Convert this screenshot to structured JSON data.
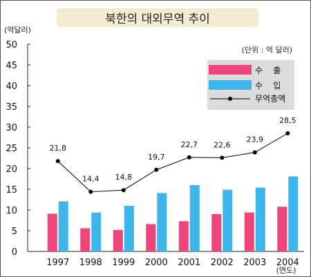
{
  "colors": {
    "export": "#f0457a",
    "import": "#3db6ec",
    "total": "#000000",
    "title_bg": "#f4ecd2",
    "legend_bg": "#dcdcdc"
  },
  "chart_data": {
    "type": "bar",
    "title": "북한의 대외무역 추이",
    "ylabel": "(억달러)",
    "xlabel": "(연도)",
    "unit_note": "(단위 : 억 달러)",
    "ylim": [
      0,
      50
    ],
    "yticks": [
      0,
      5,
      10,
      15,
      20,
      25,
      30,
      35,
      40,
      45,
      50
    ],
    "categories": [
      "1997",
      "1998",
      "1999",
      "2000",
      "2001",
      "2002",
      "2003",
      "2004"
    ],
    "series": [
      {
        "name": "수    출",
        "kind": "bar",
        "color": "#f0457a",
        "values": [
          9.1,
          5.6,
          5.2,
          6.6,
          7.3,
          9.0,
          9.4,
          10.8
        ]
      },
      {
        "name": "수    입",
        "kind": "bar",
        "color": "#3db6ec",
        "values": [
          12.1,
          9.4,
          11.0,
          14.1,
          16.0,
          14.9,
          15.4,
          18.1
        ]
      },
      {
        "name": "무역총액",
        "kind": "line",
        "color": "#000000",
        "values": [
          21.8,
          14.4,
          14.8,
          19.7,
          22.7,
          22.6,
          23.9,
          28.5
        ],
        "labels": [
          "21,8",
          "14,4",
          "14,8",
          "19,7",
          "22,7",
          "22,6",
          "23,9",
          "28,5"
        ]
      }
    ],
    "legend_position": "top-right",
    "grid": false
  }
}
